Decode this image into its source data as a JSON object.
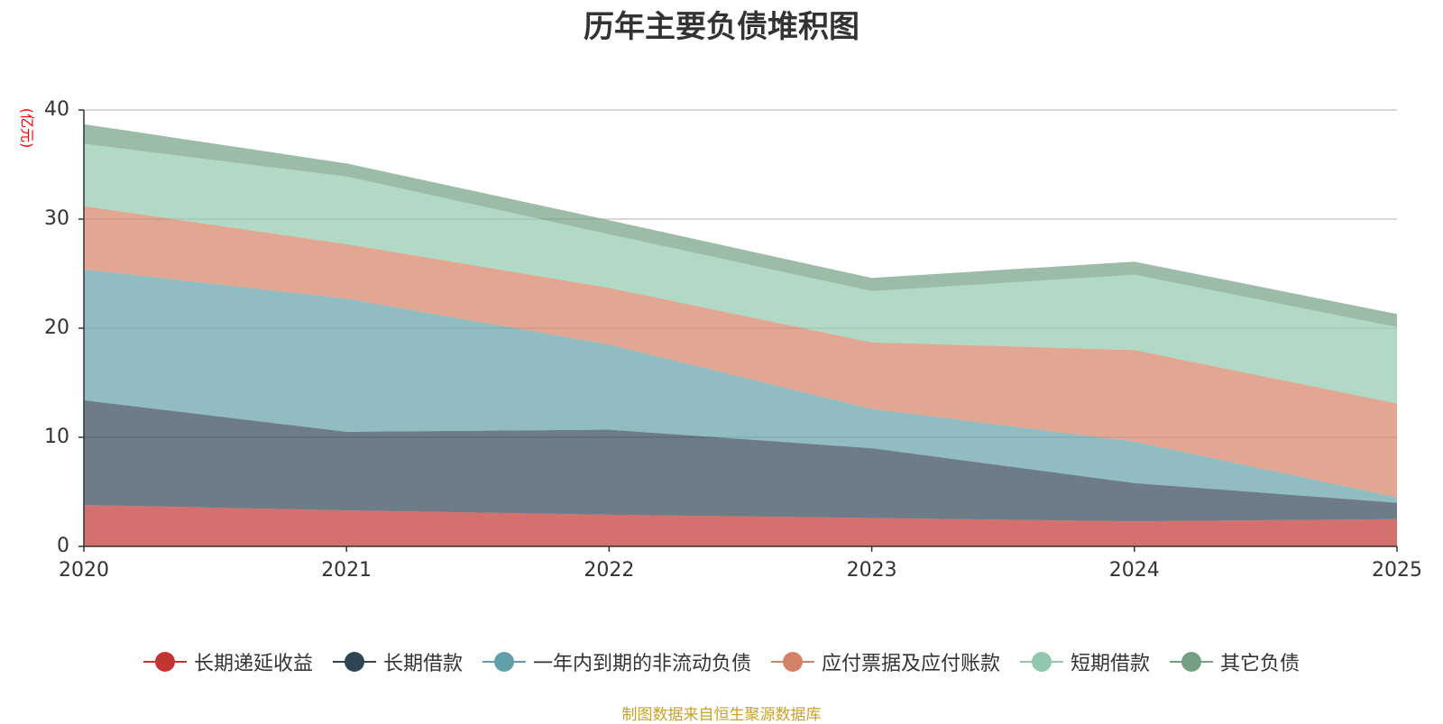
{
  "chart_data": {
    "type": "area",
    "stacked": true,
    "title": "历年主要负债堆积图",
    "ylabel": "(亿元)",
    "x": [
      "2020",
      "2021",
      "2022",
      "2023",
      "2024",
      "2025"
    ],
    "ylim": [
      0,
      40
    ],
    "yticks": [
      0,
      10,
      20,
      30,
      40
    ],
    "grid": true,
    "legend_position": "bottom",
    "series": [
      {
        "name": "长期递延收益",
        "color": "#c23531",
        "values": [
          3.8,
          3.3,
          2.9,
          2.6,
          2.3,
          2.5
        ]
      },
      {
        "name": "长期借款",
        "color": "#2f4554",
        "values": [
          9.6,
          7.2,
          7.8,
          6.4,
          3.5,
          1.5
        ]
      },
      {
        "name": "一年内到期的非流动负债",
        "color": "#61a0a8",
        "values": [
          12.0,
          12.2,
          7.8,
          3.6,
          3.8,
          0.5
        ]
      },
      {
        "name": "应付票据及应付账款",
        "color": "#d48265",
        "values": [
          5.8,
          5.0,
          5.2,
          6.1,
          8.4,
          8.6
        ]
      },
      {
        "name": "短期借款",
        "color": "#91c7ae",
        "values": [
          5.7,
          6.2,
          4.9,
          4.7,
          6.9,
          7.0
        ]
      },
      {
        "name": "其它负债",
        "color": "#749f83",
        "values": [
          1.8,
          1.2,
          1.3,
          1.2,
          1.2,
          1.2
        ]
      }
    ]
  },
  "footer": {
    "source": "制图数据来自恒生聚源数据库"
  }
}
